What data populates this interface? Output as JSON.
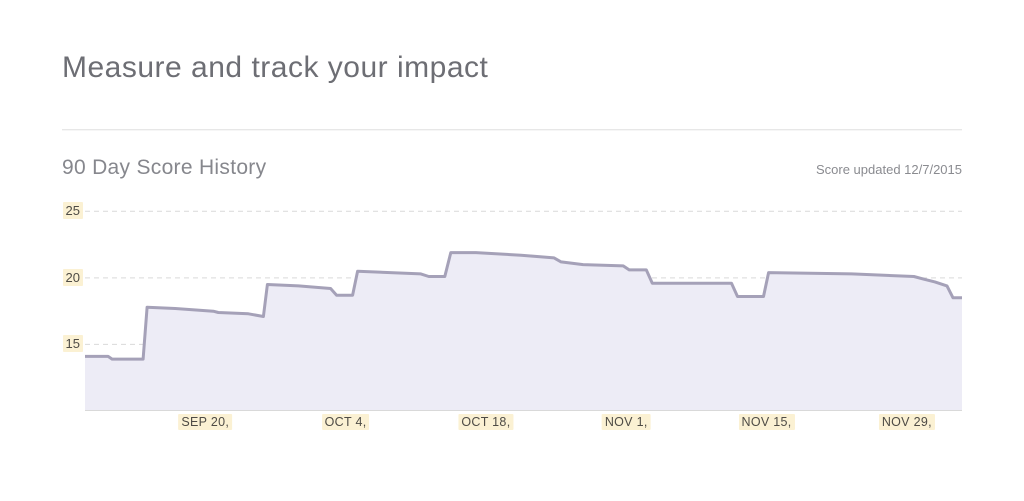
{
  "page": {
    "title": "Measure and track your impact"
  },
  "chart_header": {
    "title": "90 Day Score History",
    "updated": "Score updated 12/7/2015"
  },
  "chart_data": {
    "type": "area",
    "title": "90 Day Score History",
    "subtitle": "Score updated 12/7/2015",
    "xlabel": "",
    "ylabel": "",
    "y_ticks": [
      15,
      20,
      25
    ],
    "y_range": [
      10,
      26
    ],
    "x_range_days": [
      0,
      87.5
    ],
    "x_ticks": [
      {
        "day": 12,
        "label": "SEP 20,"
      },
      {
        "day": 26,
        "label": "OCT 4,"
      },
      {
        "day": 40,
        "label": "OCT 18,"
      },
      {
        "day": 54,
        "label": "NOV 1,"
      },
      {
        "day": 68,
        "label": "NOV 15,"
      },
      {
        "day": 82,
        "label": "NOV 29,"
      }
    ],
    "grid": "horizontal-dashed",
    "legend": "none",
    "points": [
      [
        0,
        14.1
      ],
      [
        2.3,
        14.1
      ],
      [
        2.7,
        13.9
      ],
      [
        5.8,
        13.9
      ],
      [
        6.2,
        17.8
      ],
      [
        9,
        17.7
      ],
      [
        12.8,
        17.5
      ],
      [
        13.3,
        17.4
      ],
      [
        16.3,
        17.3
      ],
      [
        17.8,
        17.1
      ],
      [
        18.2,
        19.5
      ],
      [
        21.3,
        19.4
      ],
      [
        24.5,
        19.2
      ],
      [
        25.1,
        18.7
      ],
      [
        26.7,
        18.7
      ],
      [
        27.2,
        20.5
      ],
      [
        33.5,
        20.3
      ],
      [
        34.3,
        20.1
      ],
      [
        35.9,
        20.1
      ],
      [
        36.5,
        21.9
      ],
      [
        39,
        21.9
      ],
      [
        43.5,
        21.7
      ],
      [
        46.8,
        21.5
      ],
      [
        47.5,
        21.2
      ],
      [
        49.7,
        21.0
      ],
      [
        53.7,
        20.9
      ],
      [
        54.3,
        20.6
      ],
      [
        56,
        20.6
      ],
      [
        56.6,
        19.6
      ],
      [
        64.5,
        19.6
      ],
      [
        65.1,
        18.6
      ],
      [
        67.7,
        18.6
      ],
      [
        68.2,
        20.4
      ],
      [
        76.5,
        20.3
      ],
      [
        82.7,
        20.1
      ],
      [
        83.7,
        19.9
      ],
      [
        84.8,
        19.7
      ],
      [
        86,
        19.4
      ],
      [
        86.6,
        18.5
      ],
      [
        87.5,
        18.5
      ]
    ],
    "colors": {
      "line": "#a5a1b8",
      "fill": "#edecf6",
      "grid": "#d9d9d9",
      "axis": "#d9d9d9",
      "tick_text": "#4e4b45",
      "tick_highlight": "#fbf1d3"
    }
  }
}
